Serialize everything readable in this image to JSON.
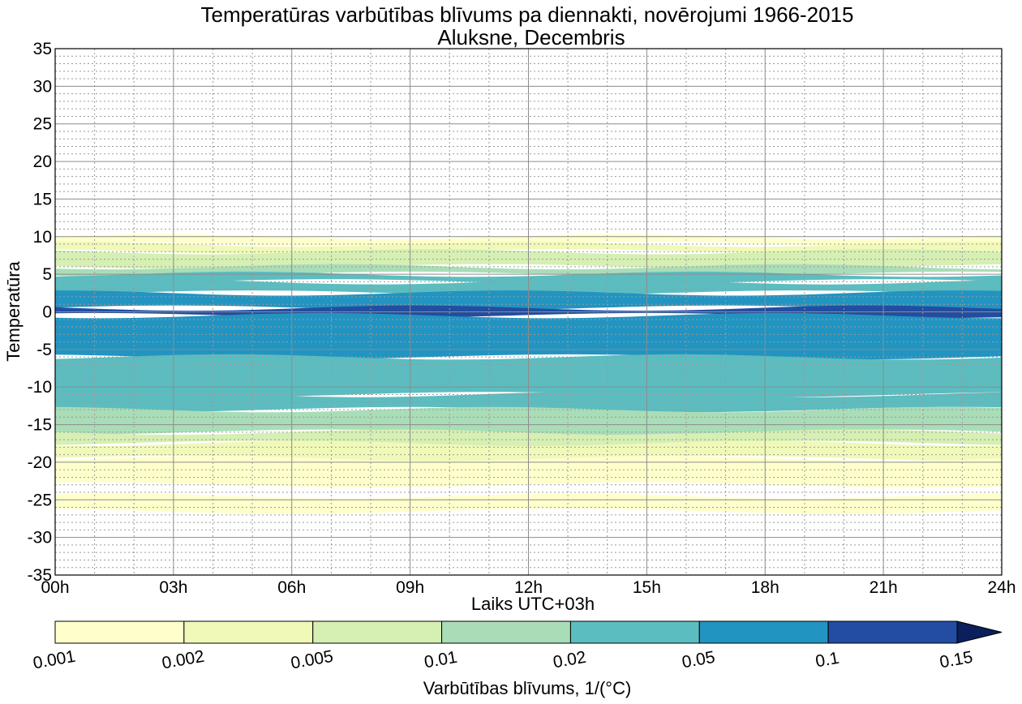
{
  "chart_data": {
    "type": "heatmap",
    "title": "Temperatūras varbūtības blīvums pa diennakti, novērojumi 1966-2015",
    "subtitle": "Aluksne, Decembris",
    "xlabel": "Laiks UTC+03h",
    "ylabel": "Temperatūra",
    "xlim": [
      0,
      24
    ],
    "ylim": [
      -35,
      35
    ],
    "x_ticks": [
      "00h",
      "03h",
      "06h",
      "09h",
      "12h",
      "15h",
      "18h",
      "21h",
      "24h"
    ],
    "y_ticks": [
      "35",
      "30",
      "25",
      "20",
      "15",
      "10",
      "5",
      "0",
      "-5",
      "-10",
      "-15",
      "-20",
      "-25",
      "-30",
      "-35"
    ],
    "grid": true,
    "colorbar": {
      "label": "Varbūtības blīvums, 1/(°C)",
      "levels": [
        "0.001",
        "0.002",
        "0.005",
        "0.01",
        "0.02",
        "0.05",
        "0.1",
        "0.15"
      ],
      "colors": [
        "#ffffcc",
        "#f0f9b8",
        "#d6efb3",
        "#a9ddb7",
        "#5bbdc0",
        "#2294c1",
        "#234da0",
        "#0b1f5b"
      ]
    },
    "density_bands": [
      {
        "t_from": 9,
        "t_to": 10,
        "level": 0
      },
      {
        "t_from": 8,
        "t_to": 9,
        "level": 1
      },
      {
        "t_from": 6,
        "t_to": 8,
        "level": 2
      },
      {
        "t_from": 5,
        "t_to": 6,
        "level": 3
      },
      {
        "t_from": 4,
        "t_to": 5,
        "level": 4
      },
      {
        "t_from": 2.5,
        "t_to": 4,
        "level": 4
      },
      {
        "t_from": 0.5,
        "t_to": 2.5,
        "level": 5
      },
      {
        "t_from": -0.5,
        "t_to": 0.5,
        "level": 6
      },
      {
        "t_from": -6,
        "t_to": -0.5,
        "level": 5
      },
      {
        "t_from": -11,
        "t_to": -6,
        "level": 4
      },
      {
        "t_from": -13,
        "t_to": -11,
        "level": 4
      },
      {
        "t_from": -16,
        "t_to": -13,
        "level": 3
      },
      {
        "t_from": -17.5,
        "t_to": -16,
        "level": 2
      },
      {
        "t_from": -19.5,
        "t_to": -17.5,
        "level": 1
      },
      {
        "t_from": -23,
        "t_to": -19.5,
        "level": 0
      },
      {
        "t_from": -26.5,
        "t_to": -24.5,
        "level": 0
      }
    ]
  }
}
